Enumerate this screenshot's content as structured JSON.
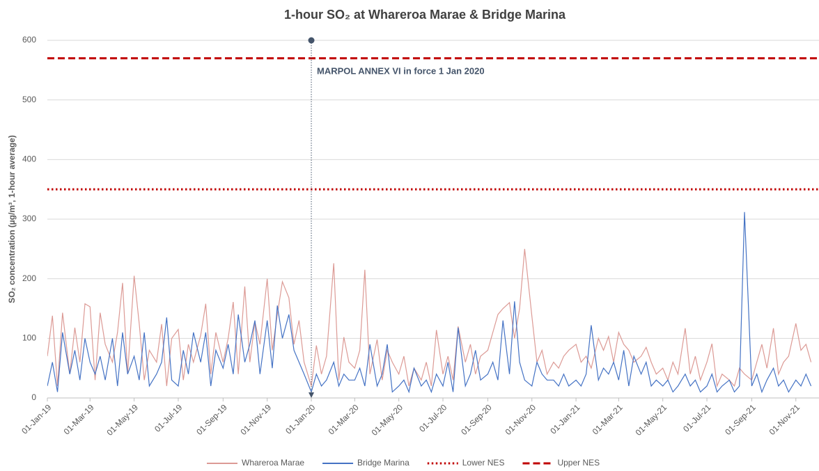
{
  "chart_data": {
    "type": "line",
    "title": "1-hour SO₂ at Whareroa Marae & Bridge Marina",
    "y_label": "SO₂ concentration (µg/m³, 1-hour average)",
    "xlim": [
      "2019-01-01",
      "2021-12-03"
    ],
    "ylim": [
      0,
      600
    ],
    "yticks": [
      0,
      100,
      200,
      300,
      400,
      500,
      600
    ],
    "grid": true,
    "xticks": [
      {
        "value": "2019-01-01",
        "label": "01-Jan-19"
      },
      {
        "value": "2019-03-01",
        "label": "01-Mar-19"
      },
      {
        "value": "2019-05-01",
        "label": "01-May-19"
      },
      {
        "value": "2019-07-01",
        "label": "01-Jul-19"
      },
      {
        "value": "2019-09-01",
        "label": "01-Sep-19"
      },
      {
        "value": "2019-11-01",
        "label": "01-Nov-19"
      },
      {
        "value": "2020-01-01",
        "label": "01-Jan-20"
      },
      {
        "value": "2020-03-01",
        "label": "01-Mar-20"
      },
      {
        "value": "2020-05-01",
        "label": "01-May-20"
      },
      {
        "value": "2020-07-01",
        "label": "01-Jul-20"
      },
      {
        "value": "2020-09-01",
        "label": "01-Sep-20"
      },
      {
        "value": "2020-11-01",
        "label": "01-Nov-20"
      },
      {
        "value": "2021-01-01",
        "label": "01-Jan-21"
      },
      {
        "value": "2021-03-01",
        "label": "01-Mar-21"
      },
      {
        "value": "2021-05-01",
        "label": "01-May-21"
      },
      {
        "value": "2021-07-01",
        "label": "01-Jul-21"
      },
      {
        "value": "2021-09-01",
        "label": "01-Sep-21"
      },
      {
        "value": "2021-11-01",
        "label": "01-Nov-21"
      }
    ],
    "x": [
      "2019-01-01",
      "2019-01-08",
      "2019-01-15",
      "2019-01-22",
      "2019-02-01",
      "2019-02-08",
      "2019-02-15",
      "2019-02-22",
      "2019-03-01",
      "2019-03-08",
      "2019-03-15",
      "2019-03-22",
      "2019-04-01",
      "2019-04-08",
      "2019-04-15",
      "2019-04-22",
      "2019-05-01",
      "2019-05-08",
      "2019-05-15",
      "2019-05-22",
      "2019-06-01",
      "2019-06-08",
      "2019-06-15",
      "2019-06-22",
      "2019-07-01",
      "2019-07-08",
      "2019-07-15",
      "2019-07-22",
      "2019-08-01",
      "2019-08-08",
      "2019-08-15",
      "2019-08-22",
      "2019-09-01",
      "2019-09-08",
      "2019-09-15",
      "2019-09-22",
      "2019-10-01",
      "2019-10-08",
      "2019-10-15",
      "2019-10-22",
      "2019-11-01",
      "2019-11-08",
      "2019-11-15",
      "2019-11-22",
      "2019-12-01",
      "2019-12-08",
      "2019-12-15",
      "2019-12-22",
      "2020-01-01",
      "2020-01-08",
      "2020-01-15",
      "2020-01-22",
      "2020-02-01",
      "2020-02-08",
      "2020-02-15",
      "2020-02-22",
      "2020-03-01",
      "2020-03-08",
      "2020-03-15",
      "2020-03-22",
      "2020-04-01",
      "2020-04-08",
      "2020-04-15",
      "2020-04-22",
      "2020-05-01",
      "2020-05-08",
      "2020-05-15",
      "2020-05-22",
      "2020-06-01",
      "2020-06-08",
      "2020-06-15",
      "2020-06-22",
      "2020-07-01",
      "2020-07-08",
      "2020-07-15",
      "2020-07-22",
      "2020-08-01",
      "2020-08-08",
      "2020-08-15",
      "2020-08-22",
      "2020-09-01",
      "2020-09-08",
      "2020-09-15",
      "2020-09-22",
      "2020-10-01",
      "2020-10-08",
      "2020-10-15",
      "2020-10-22",
      "2020-11-01",
      "2020-11-08",
      "2020-11-15",
      "2020-11-22",
      "2020-12-01",
      "2020-12-08",
      "2020-12-15",
      "2020-12-22",
      "2021-01-01",
      "2021-01-08",
      "2021-01-15",
      "2021-01-22",
      "2021-02-01",
      "2021-02-08",
      "2021-02-15",
      "2021-02-22",
      "2021-03-01",
      "2021-03-08",
      "2021-03-15",
      "2021-03-22",
      "2021-04-01",
      "2021-04-08",
      "2021-04-15",
      "2021-04-22",
      "2021-05-01",
      "2021-05-08",
      "2021-05-15",
      "2021-05-22",
      "2021-06-01",
      "2021-06-08",
      "2021-06-15",
      "2021-06-22",
      "2021-07-01",
      "2021-07-08",
      "2021-07-15",
      "2021-07-22",
      "2021-08-01",
      "2021-08-08",
      "2021-08-15",
      "2021-08-22",
      "2021-09-01",
      "2021-09-08",
      "2021-09-15",
      "2021-09-22",
      "2021-10-01",
      "2021-10-08",
      "2021-10-15",
      "2021-10-22",
      "2021-11-01",
      "2021-11-08",
      "2021-11-15",
      "2021-11-22"
    ],
    "series": [
      {
        "name": "Whareroa Marae",
        "color": "#dc9a95",
        "values": [
          70,
          138,
          20,
          143,
          40,
          118,
          60,
          158,
          153,
          30,
          143,
          90,
          60,
          110,
          193,
          40,
          205,
          125,
          30,
          80,
          60,
          124,
          20,
          100,
          115,
          30,
          90,
          60,
          105,
          158,
          40,
          110,
          60,
          100,
          161,
          40,
          187,
          60,
          128,
          90,
          200,
          80,
          140,
          195,
          168,
          90,
          130,
          60,
          20,
          88,
          40,
          70,
          226,
          30,
          102,
          60,
          50,
          80,
          215,
          40,
          98,
          30,
          80,
          60,
          40,
          70,
          20,
          50,
          30,
          60,
          20,
          114,
          40,
          70,
          30,
          120,
          60,
          90,
          40,
          70,
          80,
          110,
          140,
          150,
          160,
          100,
          150,
          250,
          137,
          60,
          80,
          40,
          60,
          50,
          70,
          80,
          90,
          60,
          70,
          50,
          100,
          80,
          103,
          60,
          110,
          90,
          80,
          60,
          70,
          85,
          60,
          40,
          50,
          30,
          60,
          40,
          117,
          40,
          70,
          30,
          60,
          91,
          20,
          40,
          30,
          20,
          50,
          40,
          30,
          60,
          90,
          50,
          117,
          40,
          60,
          70,
          125,
          80,
          90,
          60
        ]
      },
      {
        "name": "Bridge Marina",
        "color": "#4472c4",
        "values": [
          20,
          60,
          10,
          110,
          40,
          80,
          30,
          100,
          60,
          40,
          70,
          30,
          100,
          20,
          110,
          40,
          70,
          30,
          110,
          20,
          40,
          60,
          135,
          30,
          20,
          80,
          40,
          110,
          60,
          110,
          20,
          80,
          50,
          90,
          40,
          140,
          60,
          90,
          130,
          40,
          130,
          50,
          155,
          100,
          140,
          80,
          60,
          40,
          10,
          40,
          20,
          30,
          60,
          20,
          40,
          30,
          30,
          50,
          20,
          90,
          20,
          40,
          90,
          10,
          20,
          30,
          10,
          50,
          20,
          30,
          10,
          40,
          20,
          60,
          10,
          118,
          20,
          40,
          80,
          30,
          40,
          60,
          30,
          130,
          40,
          162,
          60,
          30,
          20,
          60,
          40,
          30,
          30,
          20,
          40,
          20,
          30,
          20,
          40,
          122,
          30,
          50,
          40,
          60,
          30,
          80,
          20,
          70,
          40,
          60,
          20,
          30,
          20,
          30,
          10,
          20,
          40,
          20,
          30,
          10,
          20,
          40,
          10,
          20,
          30,
          10,
          20,
          312,
          20,
          40,
          10,
          30,
          50,
          20,
          30,
          10,
          30,
          20,
          40,
          20
        ]
      }
    ],
    "reference_lines": [
      {
        "name": "Lower NES",
        "value": 350,
        "color": "#c00000",
        "style": "dotted"
      },
      {
        "name": "Upper NES",
        "value": 570,
        "color": "#c00000",
        "style": "dashed"
      }
    ],
    "annotation": {
      "text": "MARPOL ANNEX VI in force 1 Jan 2020",
      "x": "2020-01-01",
      "y": 600,
      "color": "#44546a"
    }
  }
}
